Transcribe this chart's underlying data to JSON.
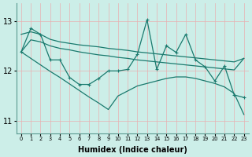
{
  "background_color": "#cceee8",
  "line_color": "#1a7a6e",
  "red_grid_color": "#e8b0b0",
  "teal_grid_color": "#aaddd8",
  "xlabel": "Humidex (Indice chaleur)",
  "x_values": [
    0,
    1,
    2,
    3,
    4,
    5,
    6,
    7,
    8,
    9,
    10,
    11,
    12,
    13,
    14,
    15,
    16,
    17,
    18,
    19,
    20,
    21,
    22,
    23
  ],
  "zigzag": [
    12.38,
    12.85,
    12.73,
    12.22,
    12.22,
    11.87,
    11.73,
    11.73,
    11.85,
    12.0,
    12.0,
    12.03,
    12.33,
    13.02,
    12.03,
    12.5,
    12.37,
    12.73,
    12.22,
    12.08,
    11.8,
    12.1,
    11.52,
    11.47
  ],
  "smooth_upper": [
    12.73,
    12.78,
    12.73,
    12.63,
    12.58,
    12.55,
    12.52,
    12.5,
    12.48,
    12.45,
    12.43,
    12.41,
    12.38,
    12.36,
    12.34,
    12.32,
    12.3,
    12.28,
    12.26,
    12.24,
    12.22,
    12.2,
    12.18,
    12.25
  ],
  "smooth_lower": [
    12.38,
    12.62,
    12.58,
    12.5,
    12.45,
    12.42,
    12.38,
    12.35,
    12.32,
    12.3,
    12.27,
    12.25,
    12.22,
    12.2,
    12.18,
    12.16,
    12.14,
    12.12,
    12.1,
    12.08,
    12.06,
    12.04,
    12.02,
    12.25
  ],
  "diagonal": [
    12.38,
    12.25,
    12.12,
    11.99,
    11.87,
    11.74,
    11.61,
    11.48,
    11.36,
    11.23,
    11.5,
    11.6,
    11.7,
    11.75,
    11.8,
    11.85,
    11.88,
    11.88,
    11.85,
    11.8,
    11.75,
    11.68,
    11.55,
    11.13
  ],
  "ylim": [
    10.75,
    13.35
  ],
  "yticks": [
    11,
    12,
    13
  ],
  "xlim": [
    -0.5,
    23.5
  ]
}
